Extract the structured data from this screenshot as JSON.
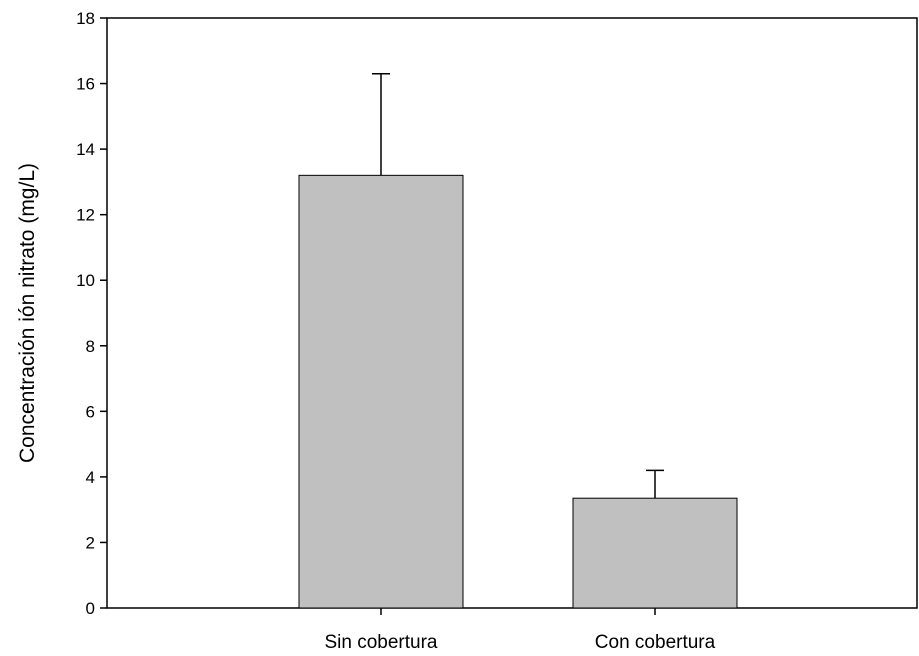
{
  "chart_data": {
    "type": "bar",
    "categories": [
      "Sin cobertura",
      "Con cobertura"
    ],
    "values": [
      13.2,
      3.35
    ],
    "error_bars": [
      3.1,
      0.85
    ],
    "ylabel": "Concentración ión nitrato (mg/L)",
    "xlabel": "",
    "ylim": [
      0,
      18
    ],
    "yticks": [
      0,
      2,
      4,
      6,
      8,
      10,
      12,
      14,
      16,
      18
    ],
    "grid": false,
    "bar_color": "#c0c0c0",
    "edge_color": "#000000"
  }
}
